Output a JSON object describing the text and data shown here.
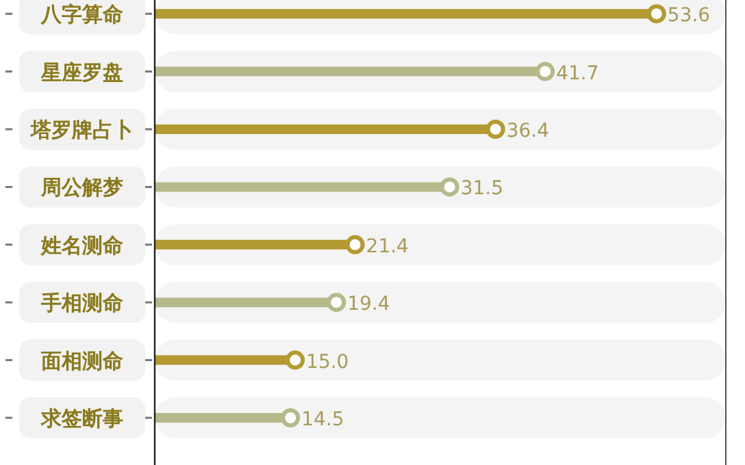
{
  "chart_data": {
    "type": "lollipop",
    "orientation": "horizontal",
    "categories": [
      "八字算命",
      "星座罗盘",
      "塔罗牌占卜",
      "周公解梦",
      "姓名测命",
      "手相测命",
      "面相测命",
      "求签断事"
    ],
    "series": [
      {
        "type": "bar",
        "color": "#f4f4f4",
        "values": [
          61,
          61,
          61,
          61,
          61,
          61,
          61,
          61
        ]
      },
      {
        "values": [
          53.6,
          41.7,
          36.4,
          31.5,
          21.4,
          19.4,
          15.0,
          14.5
        ],
        "colors": [
          "#b39a32",
          "#b6b98a",
          "#b39a32",
          "#b6b98a",
          "#b39a32",
          "#b6b98a",
          "#b39a32",
          "#b6b98a"
        ],
        "value_labels": [
          "53.6",
          "41.7",
          "36.4",
          "31.5",
          "21.4",
          "19.4",
          "15.0",
          "14.5"
        ]
      }
    ],
    "xlim": [
      0,
      61
    ]
  }
}
